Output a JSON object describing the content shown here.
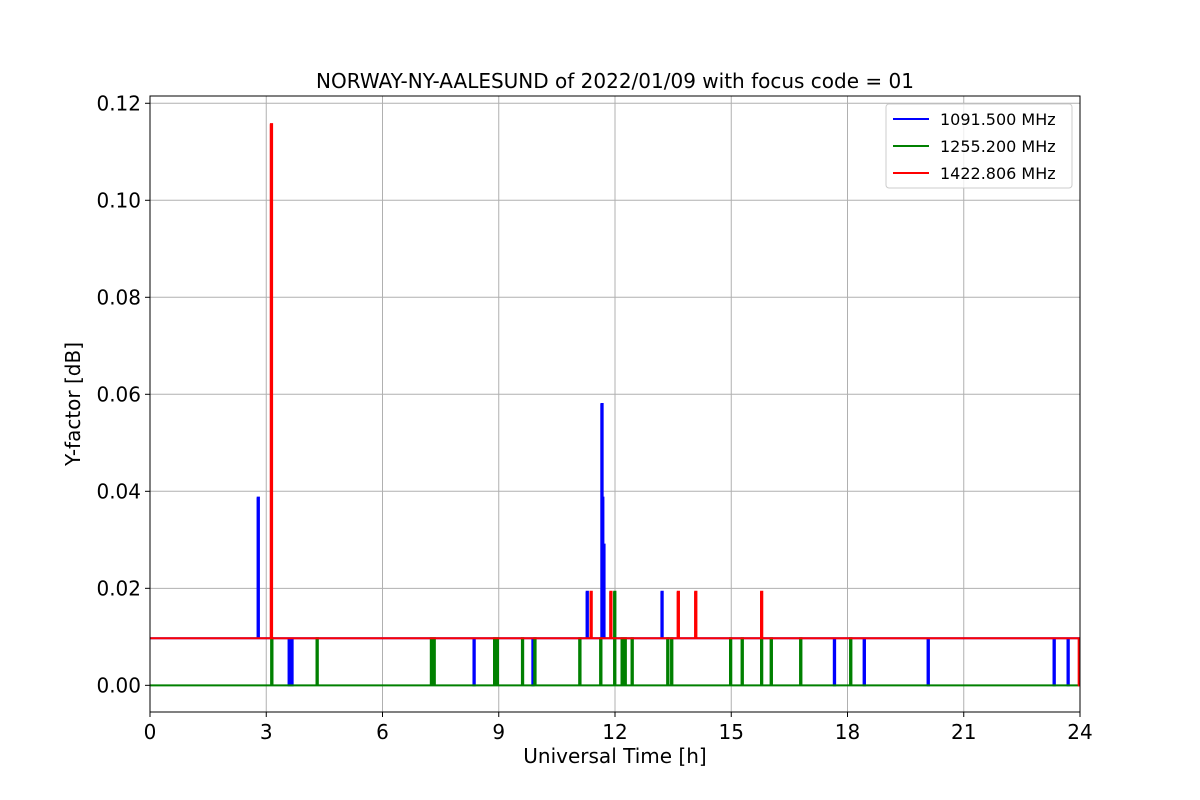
{
  "chart_data": {
    "type": "line",
    "title": "NORWAY-NY-AALESUND of 2022/01/09 with focus code = 01",
    "xlabel": "Universal Time [h]",
    "ylabel": "Y-factor [dB]",
    "xlim": [
      0,
      24
    ],
    "ylim": [
      -0.0055,
      0.1215
    ],
    "xticks": [
      0,
      3,
      6,
      9,
      12,
      15,
      18,
      21,
      24
    ],
    "xtick_labels": [
      "0",
      "3",
      "6",
      "9",
      "12",
      "15",
      "18",
      "21",
      "24"
    ],
    "yticks": [
      0.0,
      0.02,
      0.04,
      0.06,
      0.08,
      0.1,
      0.12
    ],
    "ytick_labels": [
      "0.00",
      "0.02",
      "0.04",
      "0.06",
      "0.08",
      "0.10",
      "0.12"
    ],
    "grid": true,
    "legend_position": "top-right",
    "series": [
      {
        "name": "1091.500 MHz",
        "color": "#0000ff",
        "baseline": 0.0097,
        "spikes": [
          [
            2.78,
            0.0387
          ],
          [
            3.58,
            0.0
          ],
          [
            3.65,
            0.0
          ],
          [
            8.35,
            0.0
          ],
          [
            9.87,
            0.0
          ],
          [
            11.27,
            0.0193
          ],
          [
            11.65,
            0.058
          ],
          [
            11.67,
            0.0387
          ],
          [
            11.7,
            0.029
          ],
          [
            13.2,
            0.0193
          ],
          [
            17.65,
            0.0
          ],
          [
            18.42,
            0.0
          ],
          [
            20.07,
            0.0
          ],
          [
            23.32,
            0.0
          ],
          [
            23.68,
            0.0
          ]
        ]
      },
      {
        "name": "1255.200 MHz",
        "color": "#008000",
        "baseline": 0.0,
        "spikes": [
          [
            3.13,
            0.0097
          ],
          [
            4.3,
            0.0097
          ],
          [
            7.25,
            0.0097
          ],
          [
            7.32,
            0.0097
          ],
          [
            8.88,
            0.0097
          ],
          [
            8.95,
            0.0097
          ],
          [
            9.6,
            0.0097
          ],
          [
            9.92,
            0.0097
          ],
          [
            11.08,
            0.0097
          ],
          [
            11.62,
            0.0097
          ],
          [
            11.98,
            0.0193
          ],
          [
            12.17,
            0.0097
          ],
          [
            12.25,
            0.0097
          ],
          [
            12.43,
            0.0097
          ],
          [
            13.35,
            0.0097
          ],
          [
            13.45,
            0.0097
          ],
          [
            14.97,
            0.0097
          ],
          [
            15.27,
            0.0097
          ],
          [
            15.77,
            0.0097
          ],
          [
            16.02,
            0.0097
          ],
          [
            16.78,
            0.0097
          ],
          [
            18.07,
            0.0097
          ]
        ]
      },
      {
        "name": "1422.806 MHz",
        "color": "#ff0000",
        "baseline": 0.0097,
        "spikes": [
          [
            3.12,
            0.1157
          ],
          [
            11.37,
            0.0193
          ],
          [
            11.88,
            0.0193
          ],
          [
            13.62,
            0.0193
          ],
          [
            14.07,
            0.0193
          ],
          [
            15.77,
            0.0193
          ],
          [
            23.97,
            0.0
          ]
        ]
      }
    ]
  }
}
